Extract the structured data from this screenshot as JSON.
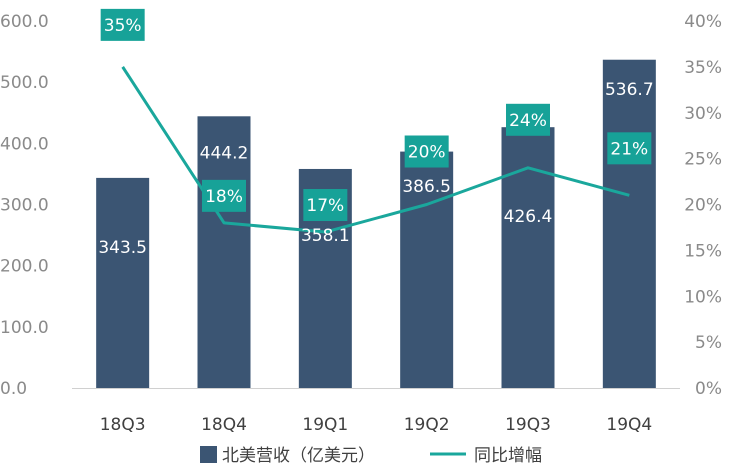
{
  "chart_data": {
    "type": "bar",
    "categories": [
      "18Q3",
      "18Q4",
      "19Q1",
      "19Q2",
      "19Q3",
      "19Q4"
    ],
    "series": [
      {
        "name": "北美营收（亿美元）",
        "type": "bar",
        "axis": "left",
        "values": [
          343.5,
          444.2,
          358.1,
          386.5,
          426.4,
          536.7
        ],
        "labels": [
          "343.5",
          "444.2",
          "358.1",
          "386.5",
          "426.4",
          "536.7"
        ]
      },
      {
        "name": "同比增幅",
        "type": "line",
        "axis": "right",
        "values": [
          35,
          18,
          17,
          20,
          24,
          21
        ],
        "labels": [
          "35%",
          "18%",
          "17%",
          "20%",
          "24%",
          "21%"
        ]
      }
    ],
    "left_axis": {
      "ylim": [
        0,
        600
      ],
      "ticks": [
        "0.0",
        "100.0",
        "200.0",
        "300.0",
        "400.0",
        "500.0",
        "600.0"
      ]
    },
    "right_axis": {
      "ylim": [
        0,
        40
      ],
      "ticks": [
        "0%",
        "5%",
        "10%",
        "15%",
        "20%",
        "25%",
        "30%",
        "35%",
        "40%"
      ]
    },
    "grid": false,
    "legend_position": "bottom",
    "colors": {
      "bar": "#3b5573",
      "line": "#1aa79c",
      "label_box": "#17a298",
      "axis": "#d0d0d0"
    }
  }
}
